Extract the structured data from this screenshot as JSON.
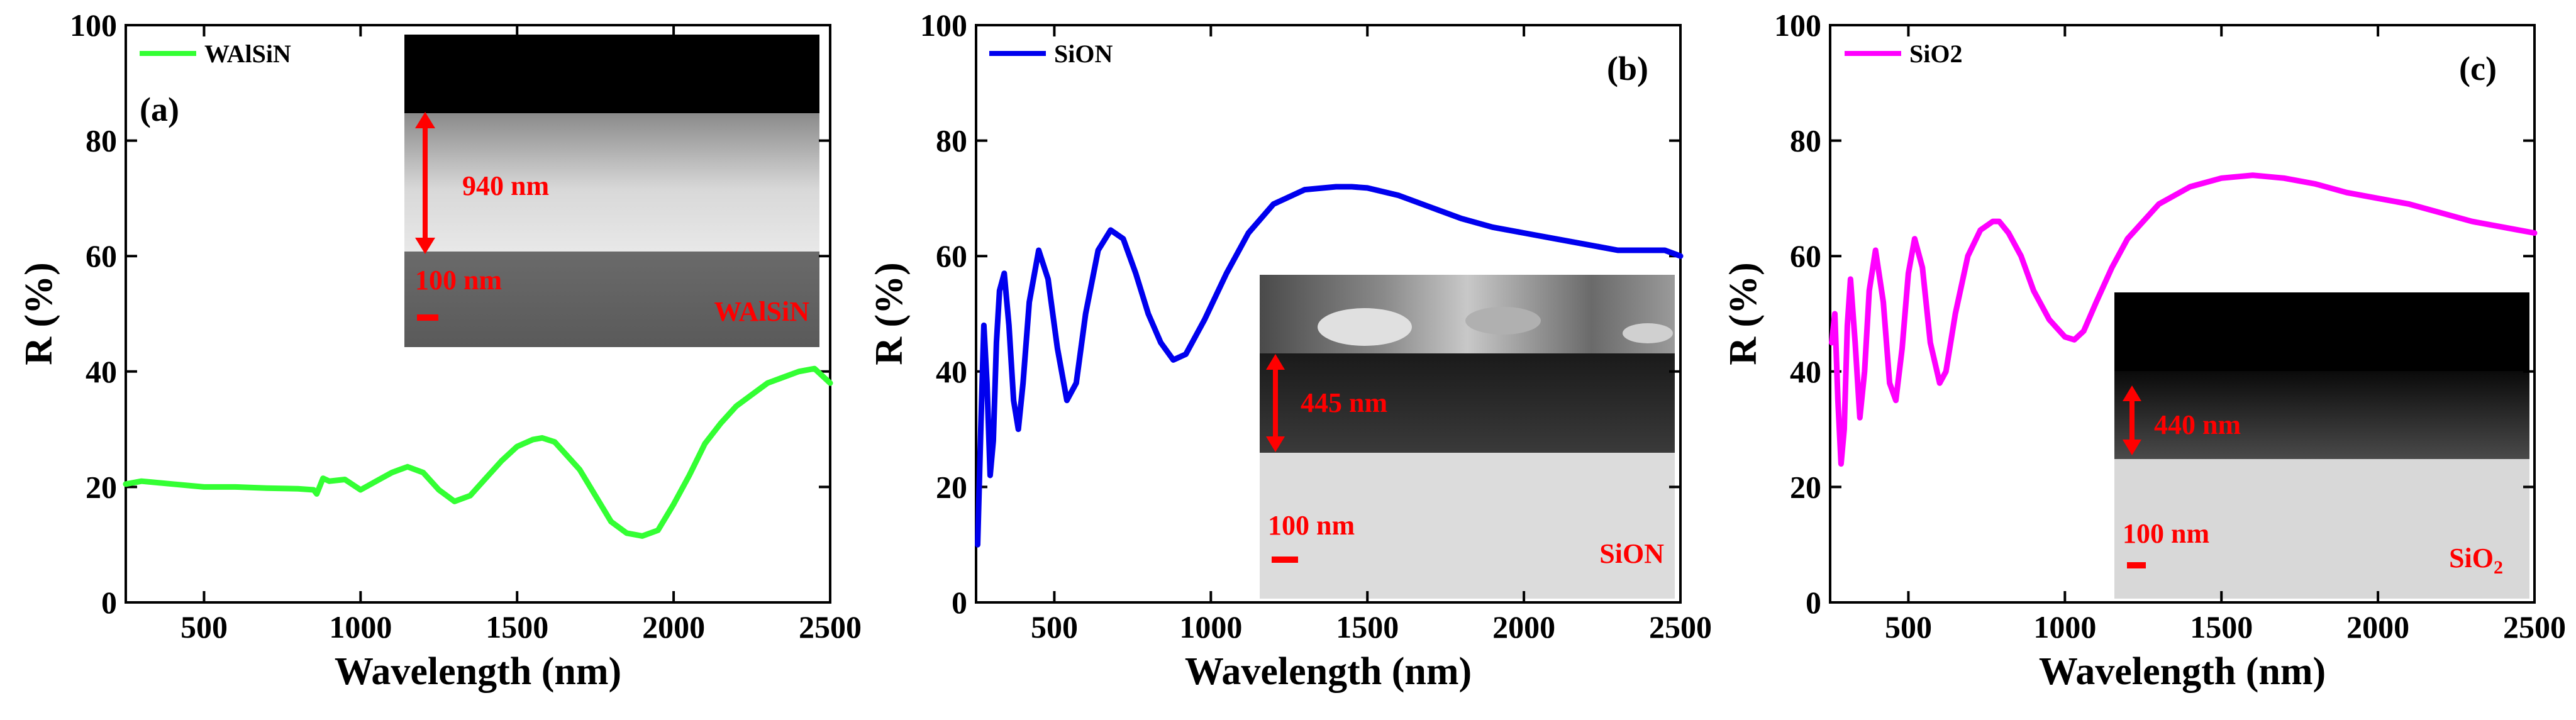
{
  "chart_data": [
    {
      "type": "line",
      "panel_label": "(a)",
      "xlabel": "Wavelength (nm)",
      "ylabel": "R (%)",
      "xlim": [
        250,
        2500
      ],
      "ylim": [
        0,
        100
      ],
      "x_ticks": [
        500,
        1000,
        1500,
        2000,
        2500
      ],
      "y_ticks": [
        0,
        20,
        40,
        60,
        80,
        100
      ],
      "legend_position": "top-left",
      "series": [
        {
          "name": "WAlSiN",
          "color": "#33ff33",
          "x": [
            250,
            300,
            400,
            500,
            600,
            700,
            800,
            850,
            860,
            880,
            900,
            950,
            1000,
            1050,
            1100,
            1150,
            1200,
            1250,
            1300,
            1350,
            1400,
            1450,
            1500,
            1550,
            1580,
            1620,
            1700,
            1750,
            1800,
            1850,
            1900,
            1950,
            2000,
            2050,
            2100,
            2150,
            2200,
            2250,
            2300,
            2350,
            2400,
            2450,
            2500
          ],
          "y": [
            20.5,
            21,
            20.5,
            20,
            20,
            19.8,
            19.7,
            19.5,
            18.8,
            21.5,
            21,
            21.3,
            19.5,
            21,
            22.5,
            23.5,
            22.5,
            19.5,
            17.5,
            18.5,
            21.5,
            24.5,
            27,
            28.2,
            28.5,
            27.8,
            23,
            18.5,
            14,
            12,
            11.5,
            12.5,
            17,
            22,
            27.5,
            31,
            34,
            36,
            38,
            39,
            40,
            40.5,
            38
          ]
        }
      ],
      "inset": {
        "thickness_label": "940 nm",
        "scale_label": "100 nm",
        "material_label": "WAlSiN"
      }
    },
    {
      "type": "line",
      "panel_label": "(b)",
      "xlabel": "Wavelength (nm)",
      "ylabel": "R (%)",
      "xlim": [
        250,
        2500
      ],
      "ylim": [
        0,
        100
      ],
      "x_ticks": [
        500,
        1000,
        1500,
        2000,
        2500
      ],
      "y_ticks": [
        0,
        20,
        40,
        60,
        80,
        100
      ],
      "legend_position": "top-left",
      "series": [
        {
          "name": "SiON",
          "color": "#0000ee",
          "x": [
            255,
            265,
            275,
            285,
            295,
            305,
            315,
            325,
            340,
            355,
            370,
            385,
            400,
            420,
            450,
            480,
            510,
            540,
            570,
            600,
            640,
            680,
            720,
            760,
            800,
            840,
            880,
            920,
            980,
            1050,
            1120,
            1200,
            1300,
            1400,
            1450,
            1500,
            1600,
            1700,
            1800,
            1900,
            2000,
            2100,
            2200,
            2300,
            2400,
            2450,
            2500
          ],
          "y": [
            10,
            30,
            48,
            38,
            22,
            28,
            45,
            54,
            57,
            48,
            35,
            30,
            38,
            52,
            61,
            56,
            44,
            35,
            38,
            50,
            61,
            64.5,
            63,
            57,
            50,
            45,
            42,
            43,
            49,
            57,
            64,
            69,
            71.5,
            72,
            72,
            71.8,
            70.5,
            68.5,
            66.5,
            65,
            64,
            63,
            62,
            61,
            61,
            61,
            60
          ]
        }
      ],
      "inset": {
        "thickness_label": "445 nm",
        "scale_label": "100 nm",
        "material_label": "SiON"
      }
    },
    {
      "type": "line",
      "panel_label": "(c)",
      "xlabel": "Wavelength (nm)",
      "ylabel": "R (%)",
      "xlim": [
        250,
        2500
      ],
      "ylim": [
        0,
        100
      ],
      "x_ticks": [
        500,
        1000,
        1500,
        2000,
        2500
      ],
      "y_ticks": [
        0,
        20,
        40,
        60,
        80,
        100
      ],
      "legend_position": "top-left",
      "series": [
        {
          "name": "SiO2",
          "color": "#ff00ff",
          "x": [
            255,
            265,
            275,
            285,
            295,
            305,
            315,
            330,
            345,
            360,
            375,
            395,
            420,
            440,
            460,
            480,
            500,
            520,
            545,
            570,
            600,
            620,
            650,
            690,
            730,
            770,
            790,
            820,
            860,
            900,
            950,
            1000,
            1030,
            1060,
            1100,
            1150,
            1200,
            1300,
            1400,
            1500,
            1600,
            1700,
            1800,
            1900,
            2000,
            2100,
            2200,
            2300,
            2400,
            2450,
            2500
          ],
          "y": [
            45,
            50,
            35,
            24,
            30,
            48,
            56,
            45,
            32,
            40,
            54,
            61,
            52,
            38,
            35,
            44,
            57,
            63,
            58,
            45,
            38,
            40,
            50,
            60,
            64.5,
            66,
            66,
            64,
            60,
            54,
            49,
            46,
            45.5,
            47,
            52,
            58,
            63,
            69,
            72,
            73.5,
            74,
            73.5,
            72.5,
            71,
            70,
            69,
            67.5,
            66,
            65,
            64.5,
            64
          ]
        }
      ],
      "inset": {
        "thickness_label": "440 nm",
        "scale_label": "100 nm",
        "material_label": "SiO",
        "material_sub": "2"
      }
    }
  ]
}
